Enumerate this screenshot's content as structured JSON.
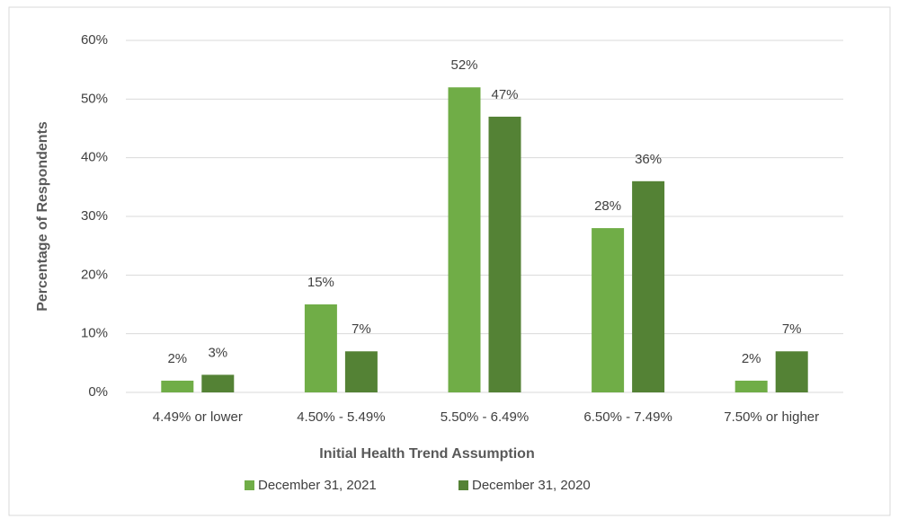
{
  "chart_data": {
    "type": "bar",
    "xlabel": "Initial Health Trend Assumption",
    "ylabel": "Percentage of Respondents",
    "categories": [
      "4.49% or lower",
      "4.50% - 5.49%",
      "5.50% - 6.49%",
      "6.50% - 7.49%",
      "7.50% or higher"
    ],
    "series": [
      {
        "name": "December 31, 2021",
        "color": "#70ad47",
        "values": [
          2,
          15,
          52,
          28,
          2
        ],
        "value_labels": [
          "2%",
          "15%",
          "52%",
          "28%",
          "2%"
        ]
      },
      {
        "name": "December 31, 2020",
        "color": "#548235",
        "values": [
          3,
          7,
          47,
          36,
          7
        ],
        "value_labels": [
          "3%",
          "7%",
          "47%",
          "36%",
          "7%"
        ]
      }
    ],
    "ylim": [
      0,
      60
    ],
    "yticks": [
      {
        "value": 0,
        "label": "0%"
      },
      {
        "value": 10,
        "label": "10%"
      },
      {
        "value": 20,
        "label": "20%"
      },
      {
        "value": 30,
        "label": "30%"
      },
      {
        "value": 40,
        "label": "40%"
      },
      {
        "value": 50,
        "label": "50%"
      },
      {
        "value": 60,
        "label": "60%"
      }
    ],
    "grid": true
  }
}
